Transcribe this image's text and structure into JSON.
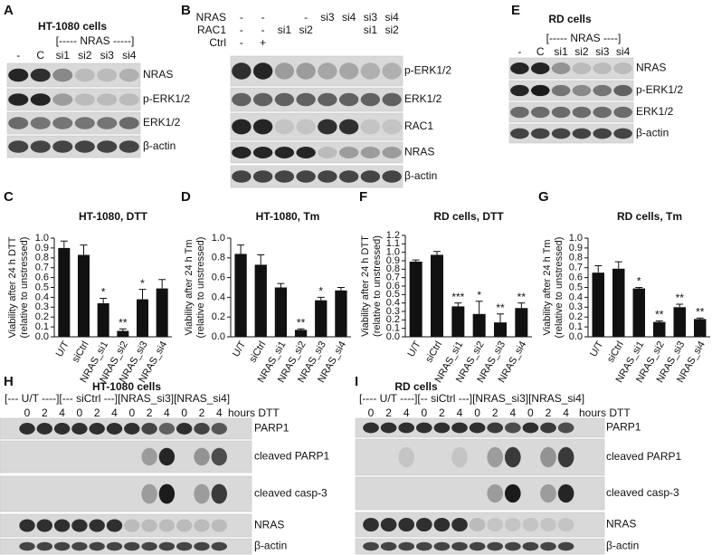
{
  "panels": {
    "A": {
      "letter": "A",
      "title": "HT-1080 cells",
      "header": "[----- NRAS -----]",
      "lanes": [
        "-",
        "C",
        "si1",
        "si2",
        "si3",
        "si4"
      ],
      "rows": [
        "NRAS",
        "p-ERK1/2",
        "ERK1/2",
        "β-actin"
      ]
    },
    "B": {
      "letter": "B",
      "conditions": [
        {
          "name": "NRAS",
          "lanes": [
            "-",
            "-",
            null,
            "-",
            "si3",
            "si4",
            "si3",
            "si4"
          ]
        },
        {
          "name": "RAC1",
          "lanes": [
            "-",
            "-",
            "si1",
            "si2",
            null,
            null,
            "si1",
            "si2"
          ]
        },
        {
          "name": "Ctrl",
          "lanes": [
            "-",
            "+",
            null,
            null,
            null,
            null,
            null,
            null
          ]
        }
      ],
      "rows": [
        "p-ERK1/2",
        "ERK1/2",
        "RAC1",
        "NRAS",
        "β-actin"
      ]
    },
    "E": {
      "letter": "E",
      "title": "RD cells",
      "header": "[----- NRAS ----]",
      "lanes": [
        "-",
        "C",
        "si1",
        "si2",
        "si3",
        "si4"
      ],
      "rows": [
        "NRAS",
        "p-ERK1/2",
        "ERK1/2",
        "β-actin"
      ]
    },
    "H": {
      "letter": "H",
      "title": "HT-1080 cells",
      "header": "[--- U/T ----][--- siCtrl ---][NRAS_si3][NRAS_si4]",
      "times": [
        0,
        2,
        4,
        0,
        2,
        4,
        0,
        2,
        4,
        0,
        2,
        4
      ],
      "time_unit": "hours DTT",
      "rows": [
        "PARP1",
        "cleaved PARP1",
        "cleaved casp-3",
        "NRAS",
        "β-actin"
      ]
    },
    "I": {
      "letter": "I",
      "title": "RD cells",
      "header": "[---- U/T ----][-- siCtrl ---][NRAS_si3][NRAS_si4]",
      "times": [
        0,
        2,
        4,
        0,
        2,
        4,
        0,
        2,
        4,
        0,
        2,
        4
      ],
      "time_unit": "hours DTT",
      "rows": [
        "PARP1",
        "cleaved PARP1",
        "cleaved casp-3",
        "NRAS",
        "β-actin"
      ]
    }
  },
  "chart_data": [
    {
      "type": "bar",
      "panel": "C",
      "title": "HT-1080, DTT",
      "y_label": [
        "Viability after 24 h DTT",
        "(relative to unstressed)"
      ],
      "color": "#111111",
      "categories": [
        "U/T",
        "siCtrl",
        "NRAS_si1",
        "NRAS_si2",
        "NRAS_si3",
        "NRAS_si4"
      ],
      "values": [
        0.9,
        0.83,
        0.34,
        0.06,
        0.38,
        0.49
      ],
      "errors": [
        0.07,
        0.1,
        0.05,
        0.02,
        0.1,
        0.09
      ],
      "stars": [
        null,
        null,
        "*",
        "**",
        "*",
        null
      ],
      "ylim": [
        0,
        1
      ],
      "yticks": [
        {
          "value": 0,
          "label": "0.0"
        },
        0.1,
        0.2,
        0.3,
        0.4,
        0.5,
        0.6,
        0.7,
        0.8,
        0.9,
        {
          "value": 1,
          "label": "1.0"
        }
      ]
    },
    {
      "type": "bar",
      "panel": "D",
      "title": "HT-1080, Tm",
      "y_label": [
        "Viability after 24 h Tm",
        "(relative to unstressed)"
      ],
      "color": "#111111",
      "categories": [
        "U/T",
        "siCtrl",
        "NRAS_si1",
        "NRAS_si2",
        "NRAS_si3",
        "NRAS_si4"
      ],
      "values": [
        0.84,
        0.73,
        0.5,
        0.07,
        0.37,
        0.47
      ],
      "errors": [
        0.09,
        0.1,
        0.04,
        0.01,
        0.03,
        0.03
      ],
      "stars": [
        null,
        null,
        null,
        "**",
        "*",
        null
      ],
      "ylim": [
        0,
        1
      ],
      "yticks": [
        {
          "value": 0,
          "label": "0.0"
        },
        0.2,
        0.4,
        0.6,
        0.8,
        {
          "value": 1,
          "label": "1.0"
        }
      ]
    },
    {
      "type": "bar",
      "panel": "F",
      "title": "RD cells, DTT",
      "y_label": [
        "Viability after 24 h DTT",
        "(relative to unstressed)"
      ],
      "color": "#111111",
      "categories": [
        "U/T",
        "siCtrl",
        "NRAS_si1",
        "NRAS_si2",
        "NRAS_si3",
        "NRAS_si4"
      ],
      "values": [
        0.89,
        0.97,
        0.36,
        0.27,
        0.17,
        0.34
      ],
      "errors": [
        0.02,
        0.04,
        0.04,
        0.15,
        0.1,
        0.06
      ],
      "stars": [
        null,
        null,
        "***",
        "*",
        "**",
        "**"
      ],
      "ylim": [
        0,
        1.2
      ],
      "yticks": [
        {
          "value": 0,
          "label": "0.0"
        },
        0.1,
        0.2,
        0.3,
        0.4,
        0.5,
        0.6,
        0.7,
        0.8,
        0.9,
        {
          "value": 1,
          "label": "1.0"
        },
        1.1,
        1.2
      ]
    },
    {
      "type": "bar",
      "panel": "G",
      "title": "RD cells, Tm",
      "y_label": [
        "Viability after 24 h Tm",
        "(relative to unstressed)"
      ],
      "color": "#111111",
      "categories": [
        "U/T",
        "siCtrl",
        "NRAS_si1",
        "NRAS_si2",
        "NRAS_si3",
        "NRAS_si4"
      ],
      "values": [
        0.65,
        0.69,
        0.49,
        0.15,
        0.3,
        0.18
      ],
      "errors": [
        0.07,
        0.07,
        0.01,
        0.01,
        0.03,
        0.01
      ],
      "stars": [
        null,
        null,
        "*",
        "**",
        "**",
        "**"
      ],
      "ylim": [
        0,
        1
      ],
      "yticks": [
        {
          "value": 0,
          "label": "0.0"
        },
        0.1,
        0.2,
        0.3,
        0.4,
        0.5,
        0.6,
        0.7,
        0.8,
        0.9,
        {
          "value": 1,
          "label": "1.0"
        }
      ]
    }
  ]
}
